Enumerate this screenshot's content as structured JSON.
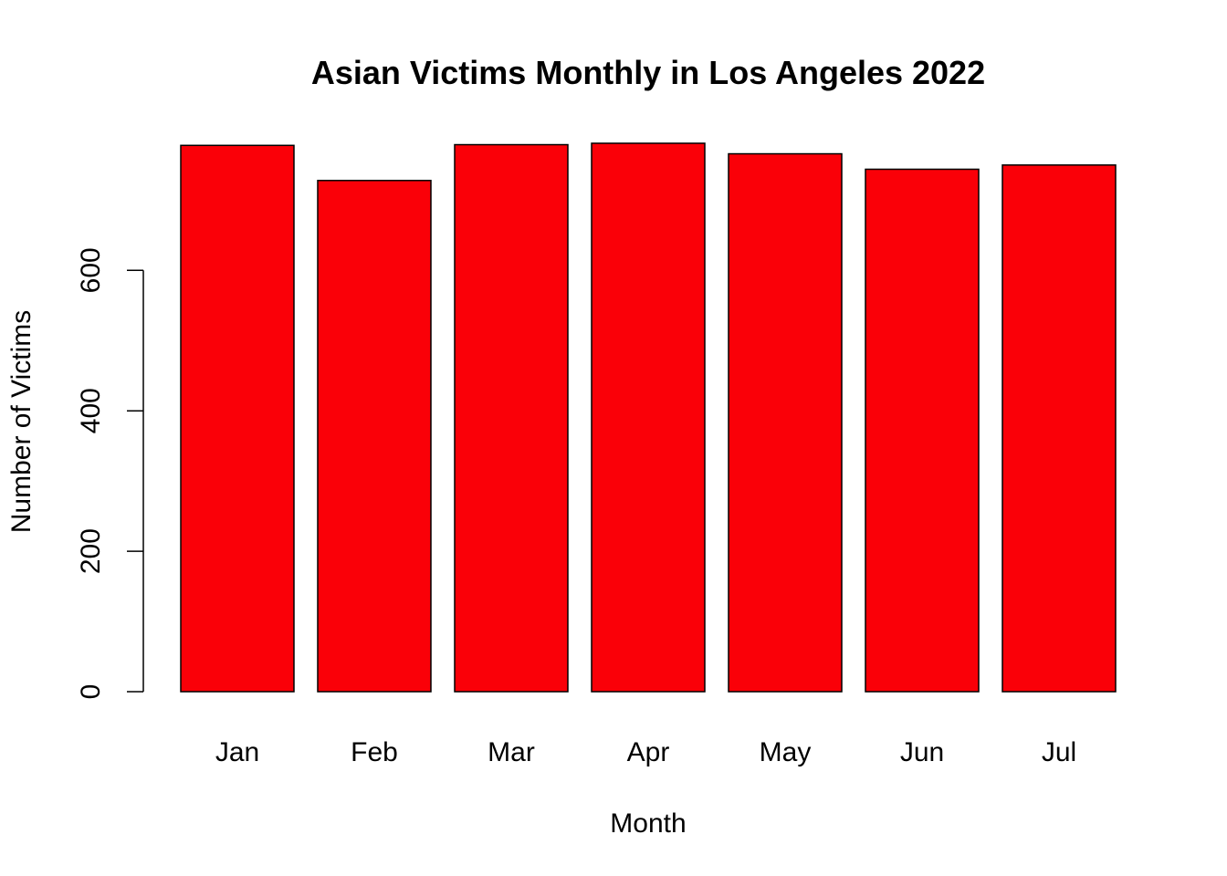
{
  "chart_data": {
    "type": "bar",
    "title": "Asian Victims Monthly in Los Angeles 2022",
    "xlabel": "Month",
    "ylabel": "Number of Victims",
    "categories": [
      "Jan",
      "Feb",
      "Mar",
      "Apr",
      "May",
      "Jun",
      "Jul"
    ],
    "values": [
      778,
      728,
      779,
      781,
      766,
      744,
      750
    ],
    "ylim": [
      0,
      781
    ],
    "yticks": [
      "0",
      "200",
      "400",
      "600"
    ],
    "grid": false,
    "legend": "none",
    "bar_color": "#FA0008",
    "border_color": "#000000"
  }
}
